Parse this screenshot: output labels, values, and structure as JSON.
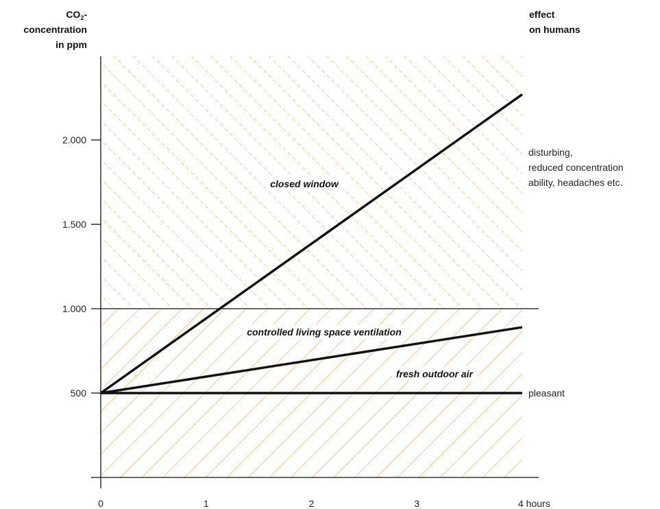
{
  "header": {
    "ylabel_co": "CO",
    "ylabel_sub": "2",
    "ylabel_dash": "-",
    "ylabel_line2": "concentration",
    "ylabel_line3": "in ppm",
    "right_label_line1": "effect",
    "right_label_line2": "on humans"
  },
  "effects": {
    "high": [
      "disturbing,",
      "reduced concentration",
      "ability, headaches etc."
    ],
    "low": [
      "pleasant"
    ]
  },
  "colors": {
    "hatch": "#f2a540",
    "axis": "#111111",
    "line": "#111111"
  },
  "chart_data": {
    "type": "line",
    "x": [
      0,
      4
    ],
    "x_tick_labels": [
      "0",
      "1",
      "2",
      "3",
      "4 hours"
    ],
    "x_ticks": [
      0,
      1,
      2,
      3,
      4
    ],
    "y_tick_labels": [
      "500",
      "1.000",
      "1.500",
      "2.000"
    ],
    "y_ticks": [
      500,
      1000,
      1500,
      2000
    ],
    "xlim": [
      0,
      4
    ],
    "ylim": [
      0,
      2550
    ],
    "threshold": 1000,
    "series": [
      {
        "name": "closed window",
        "values": [
          500,
          2270
        ]
      },
      {
        "name": "controlled living space ventilation",
        "values": [
          500,
          890
        ]
      },
      {
        "name": "fresh outdoor air",
        "values": [
          500,
          500
        ]
      }
    ],
    "grid": false,
    "legend": "none"
  }
}
